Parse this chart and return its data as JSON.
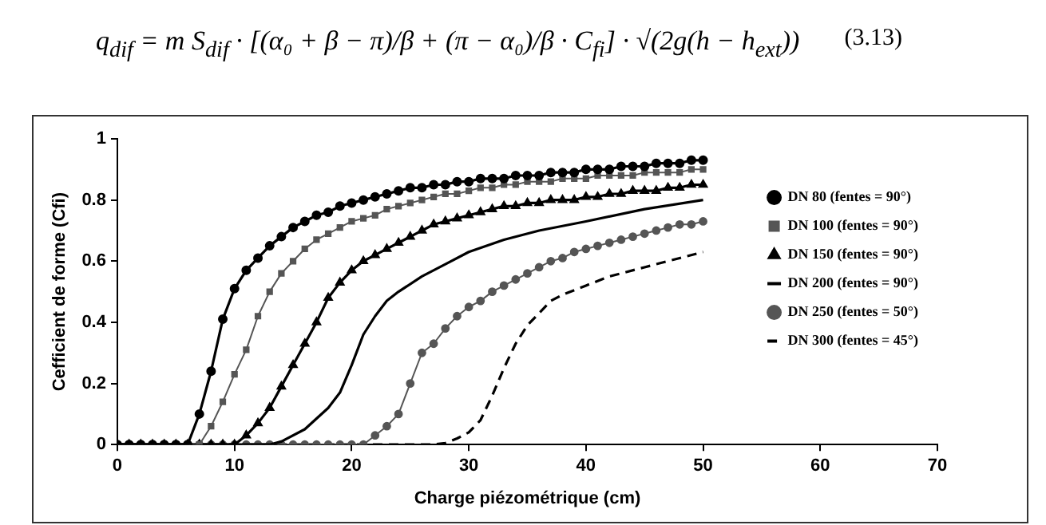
{
  "chart_data": {
    "type": "line",
    "xlabel": "Charge piézométrique (cm)",
    "ylabel": "Cefficient de forme (Cfi)",
    "annotations": [
      "q$_{dif}$ = m S$_{dif}$ · [(α₀ + β − π)/β + (π − α₀)/β · C$_{fi}$] · √(2g(h − h$_{ext}$))",
      "(3.13)"
    ],
    "x": [
      0,
      1,
      2,
      3,
      4,
      5,
      6,
      7,
      8,
      9,
      10,
      11,
      12,
      13,
      14,
      15,
      16,
      17,
      18,
      19,
      20,
      21,
      22,
      23,
      24,
      25,
      26,
      27,
      28,
      29,
      30,
      31,
      32,
      33,
      34,
      35,
      36,
      37,
      38,
      39,
      40,
      41,
      42,
      43,
      44,
      45,
      46,
      47,
      48,
      49,
      50
    ],
    "xlim": [
      0,
      70
    ],
    "xticks": [
      0,
      10,
      20,
      30,
      40,
      50,
      60,
      70
    ],
    "ylim": [
      0,
      1
    ],
    "yticks": [
      0,
      0.2,
      0.4,
      0.6,
      0.8,
      1
    ],
    "grid": false,
    "legend": "right",
    "series": [
      {
        "name": "DN 80 (fentes = 90°)",
        "color": "#000000",
        "marker": "circle",
        "line_style": "solid",
        "values": [
          0,
          0,
          0,
          0,
          0,
          0,
          0,
          0.1,
          0.24,
          0.41,
          0.51,
          0.57,
          0.61,
          0.65,
          0.68,
          0.71,
          0.73,
          0.75,
          0.76,
          0.78,
          0.79,
          0.8,
          0.81,
          0.82,
          0.83,
          0.84,
          0.84,
          0.85,
          0.85,
          0.86,
          0.86,
          0.87,
          0.87,
          0.87,
          0.88,
          0.88,
          0.88,
          0.89,
          0.89,
          0.89,
          0.9,
          0.9,
          0.9,
          0.91,
          0.91,
          0.91,
          0.92,
          0.92,
          0.92,
          0.93,
          0.93
        ]
      },
      {
        "name": "DN 100 (fentes = 90°)",
        "color": "#555555",
        "marker": "square",
        "line_style": "solid",
        "values": [
          0,
          0,
          0,
          0,
          0,
          0,
          0,
          0,
          0.06,
          0.14,
          0.23,
          0.31,
          0.42,
          0.5,
          0.56,
          0.6,
          0.64,
          0.67,
          0.69,
          0.71,
          0.73,
          0.74,
          0.75,
          0.77,
          0.78,
          0.79,
          0.8,
          0.81,
          0.82,
          0.82,
          0.83,
          0.84,
          0.84,
          0.85,
          0.85,
          0.86,
          0.86,
          0.86,
          0.87,
          0.87,
          0.87,
          0.88,
          0.88,
          0.88,
          0.88,
          0.89,
          0.89,
          0.89,
          0.89,
          0.9,
          0.9
        ]
      },
      {
        "name": "DN 150 (fentes = 90°)",
        "color": "#000000",
        "marker": "triangle",
        "line_style": "solid",
        "values": [
          0,
          0,
          0,
          0,
          0,
          0,
          0,
          0,
          0,
          0,
          0,
          0.03,
          0.07,
          0.12,
          0.19,
          0.26,
          0.33,
          0.4,
          0.48,
          0.53,
          0.57,
          0.6,
          0.62,
          0.64,
          0.66,
          0.68,
          0.7,
          0.72,
          0.73,
          0.74,
          0.75,
          0.76,
          0.77,
          0.78,
          0.78,
          0.79,
          0.79,
          0.8,
          0.8,
          0.8,
          0.81,
          0.81,
          0.82,
          0.82,
          0.83,
          0.83,
          0.83,
          0.84,
          0.84,
          0.85,
          0.85
        ]
      },
      {
        "name": "DN 200 (fentes = 90°)",
        "color": "#000000",
        "marker": "none",
        "line_style": "solid",
        "x": [
          0,
          13,
          14,
          16,
          18,
          19,
          20,
          21,
          22,
          23,
          24,
          26,
          28,
          30,
          33,
          36,
          40,
          45,
          50
        ],
        "values": [
          0,
          0,
          0.01,
          0.05,
          0.12,
          0.17,
          0.26,
          0.36,
          0.42,
          0.47,
          0.5,
          0.55,
          0.59,
          0.63,
          0.67,
          0.7,
          0.73,
          0.77,
          0.8
        ]
      },
      {
        "name": "DN 250 (fentes = 50°)",
        "color": "#555555",
        "marker": "circle",
        "line_style": "solid",
        "values": [
          0,
          0,
          0,
          0,
          0,
          0,
          0,
          0,
          0,
          0,
          0,
          0,
          0,
          0,
          0,
          0,
          0,
          0,
          0,
          0,
          0,
          0,
          0.03,
          0.06,
          0.1,
          0.2,
          0.3,
          0.33,
          0.38,
          0.42,
          0.45,
          0.47,
          0.5,
          0.52,
          0.54,
          0.56,
          0.58,
          0.6,
          0.61,
          0.63,
          0.64,
          0.65,
          0.66,
          0.67,
          0.68,
          0.69,
          0.7,
          0.71,
          0.72,
          0.72,
          0.73
        ]
      },
      {
        "name": "DN 300 (fentes = 45°)",
        "color": "#000000",
        "marker": "none",
        "line_style": "dashed",
        "x": [
          0,
          27,
          28,
          29,
          30,
          31,
          32,
          33,
          34,
          35,
          36,
          37,
          38,
          40,
          42,
          45,
          48,
          50
        ],
        "values": [
          0,
          0,
          0.005,
          0.02,
          0.04,
          0.08,
          0.16,
          0.25,
          0.33,
          0.39,
          0.43,
          0.47,
          0.49,
          0.52,
          0.55,
          0.58,
          0.61,
          0.63
        ]
      }
    ]
  }
}
